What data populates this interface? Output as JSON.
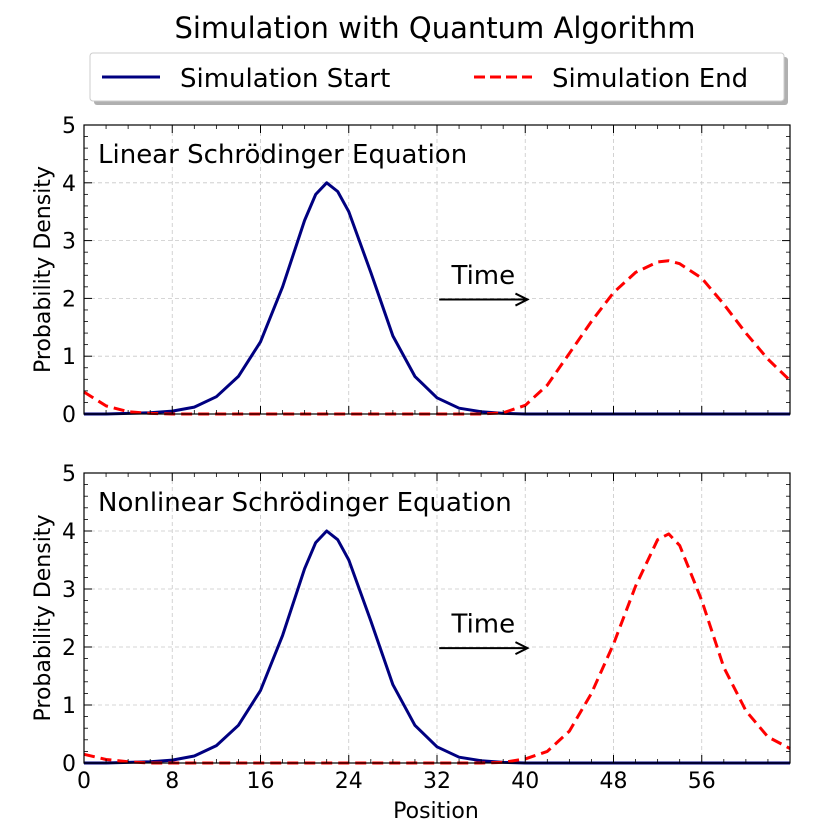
{
  "figure": {
    "title": "Simulation with Quantum Algorithm",
    "legend": {
      "placement": "top-center",
      "entries": [
        {
          "name": "Simulation Start",
          "color": "#000080",
          "style": "solid"
        },
        {
          "name": "Simulation End",
          "color": "#ff0000",
          "style": "dashed"
        }
      ]
    },
    "xlabel": "Position"
  },
  "chart_data": [
    {
      "type": "line",
      "title": "Linear Schrödinger Equation",
      "annotation": "Time",
      "xlabel": "",
      "ylabel": "Probability Density",
      "xlim": [
        0,
        64
      ],
      "ylim": [
        0,
        5
      ],
      "xticks": [
        0,
        8,
        16,
        24,
        32,
        40,
        48,
        56
      ],
      "yticks": [
        0,
        1,
        2,
        3,
        4,
        5
      ],
      "grid": true,
      "x": [
        0,
        2,
        4,
        6,
        8,
        10,
        12,
        14,
        16,
        18,
        20,
        21,
        22,
        23,
        24,
        26,
        28,
        30,
        32,
        34,
        36,
        38,
        40,
        42,
        44,
        46,
        48,
        50,
        52,
        53,
        54,
        56,
        58,
        60,
        62,
        64
      ],
      "series": [
        {
          "name": "Simulation Start",
          "color": "#000080",
          "style": "solid",
          "values": [
            0.0,
            0.0,
            0.01,
            0.02,
            0.05,
            0.12,
            0.3,
            0.65,
            1.25,
            2.2,
            3.35,
            3.8,
            4.0,
            3.85,
            3.5,
            2.45,
            1.35,
            0.65,
            0.28,
            0.1,
            0.04,
            0.01,
            0.0,
            0.0,
            0.0,
            0.0,
            0.0,
            0.0,
            0.0,
            0.0,
            0.0,
            0.0,
            0.0,
            0.0,
            0.0,
            0.0
          ]
        },
        {
          "name": "Simulation End",
          "color": "#ff0000",
          "style": "dashed",
          "values": [
            0.38,
            0.14,
            0.04,
            0.01,
            0.0,
            0.0,
            0.0,
            0.0,
            0.0,
            0.0,
            0.0,
            0.0,
            0.0,
            0.0,
            0.0,
            0.0,
            0.0,
            0.0,
            0.0,
            0.0,
            0.0,
            0.02,
            0.15,
            0.5,
            1.05,
            1.6,
            2.1,
            2.45,
            2.63,
            2.65,
            2.6,
            2.35,
            1.9,
            1.4,
            0.95,
            0.58
          ]
        }
      ]
    },
    {
      "type": "line",
      "title": "Nonlinear Schrödinger Equation",
      "annotation": "Time",
      "xlabel": "Position",
      "ylabel": "Probability Density",
      "xlim": [
        0,
        64
      ],
      "ylim": [
        0,
        5
      ],
      "xticks": [
        0,
        8,
        16,
        24,
        32,
        40,
        48,
        56
      ],
      "yticks": [
        0,
        1,
        2,
        3,
        4,
        5
      ],
      "grid": true,
      "x": [
        0,
        2,
        4,
        6,
        8,
        10,
        12,
        14,
        16,
        18,
        20,
        21,
        22,
        23,
        24,
        26,
        28,
        30,
        32,
        34,
        36,
        38,
        40,
        42,
        44,
        46,
        48,
        50,
        52,
        53,
        54,
        56,
        58,
        60,
        62,
        64
      ],
      "series": [
        {
          "name": "Simulation Start",
          "color": "#000080",
          "style": "solid",
          "values": [
            0.0,
            0.0,
            0.01,
            0.02,
            0.05,
            0.12,
            0.3,
            0.65,
            1.25,
            2.2,
            3.35,
            3.8,
            4.0,
            3.85,
            3.5,
            2.45,
            1.35,
            0.65,
            0.28,
            0.1,
            0.04,
            0.01,
            0.0,
            0.0,
            0.0,
            0.0,
            0.0,
            0.0,
            0.0,
            0.0,
            0.0,
            0.0,
            0.0,
            0.0,
            0.0,
            0.0
          ]
        },
        {
          "name": "Simulation End",
          "color": "#ff0000",
          "style": "dashed",
          "values": [
            0.15,
            0.06,
            0.02,
            0.0,
            0.0,
            0.0,
            0.0,
            0.0,
            0.0,
            0.0,
            0.0,
            0.0,
            0.0,
            0.0,
            0.0,
            0.0,
            0.0,
            0.0,
            0.0,
            0.0,
            0.0,
            0.01,
            0.07,
            0.2,
            0.55,
            1.2,
            2.05,
            3.05,
            3.85,
            3.95,
            3.75,
            2.8,
            1.65,
            0.9,
            0.45,
            0.25
          ]
        }
      ]
    }
  ]
}
